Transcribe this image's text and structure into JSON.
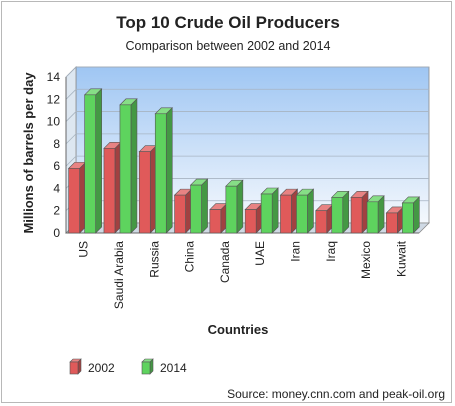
{
  "chart_data": {
    "type": "bar",
    "title": "Top 10 Crude Oil Producers",
    "subtitle": "Comparison between 2002 and 2014",
    "xlabel": "Countries",
    "ylabel": "Millions of barrels per day",
    "ylim": [
      0,
      14
    ],
    "yticks": [
      0,
      2,
      4,
      6,
      8,
      10,
      12,
      14
    ],
    "grid": true,
    "legend_position": "bottom-left",
    "categories": [
      "US",
      "Saudi Arabia",
      "Russia",
      "China",
      "Canada",
      "UAE",
      "Iran",
      "Iraq",
      "Mexico",
      "Kuwait"
    ],
    "series": [
      {
        "name": "2002",
        "color": "#e05a5a",
        "values": [
          5.8,
          7.6,
          7.3,
          3.4,
          2.1,
          2.1,
          3.4,
          2.0,
          3.2,
          1.8
        ]
      },
      {
        "name": "2014",
        "color": "#5ed35e",
        "values": [
          12.4,
          11.5,
          10.7,
          4.3,
          4.2,
          3.5,
          3.4,
          3.2,
          2.8,
          2.7
        ]
      }
    ],
    "source": "Source: money.cnn.com and peak-oil.org"
  }
}
